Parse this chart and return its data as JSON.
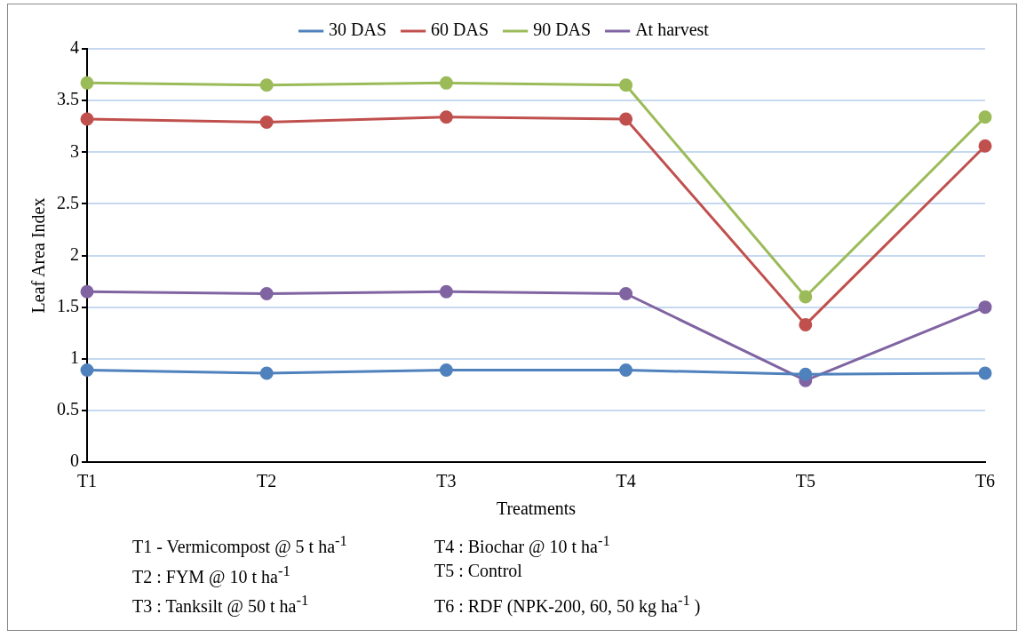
{
  "chart_data": {
    "type": "line",
    "xlabel": "Treatments",
    "ylabel": "Leaf Area Index",
    "categories": [
      "T1",
      "T2",
      "T3",
      "T4",
      "T5",
      "T6"
    ],
    "series": [
      {
        "name": "30 DAS",
        "color": "#4f81bd",
        "values": [
          0.89,
          0.86,
          0.89,
          0.89,
          0.85,
          0.86
        ]
      },
      {
        "name": "60 DAS",
        "color": "#c0504d",
        "values": [
          3.32,
          3.29,
          3.34,
          3.32,
          1.33,
          3.06
        ]
      },
      {
        "name": "90 DAS",
        "color": "#9bbb59",
        "values": [
          3.67,
          3.65,
          3.67,
          3.65,
          1.6,
          3.34
        ]
      },
      {
        "name": "At harvest",
        "color": "#8064a2",
        "values": [
          1.65,
          1.63,
          1.65,
          1.63,
          0.79,
          1.5
        ]
      }
    ],
    "ylim": [
      0,
      4
    ],
    "yticks": [
      0,
      0.5,
      1,
      1.5,
      2,
      2.5,
      3,
      3.5,
      4
    ],
    "grid": "y",
    "legend": "top",
    "marker": "circle",
    "line_style": "solid",
    "annotations": [
      "T1 - Vermicompost @ 5 t ha$^{-1}$",
      "T2 : FYM @ 10 t ha$^{-1}$",
      "T3 : Tanksilt @ 50 t ha$^{-1}$",
      "T4 : Biochar @ 10 t ha$^{-1}$",
      "T5 : Control",
      "T6 : RDF (NPK-200, 60, 50 kg ha$^{-1}$ )"
    ]
  }
}
